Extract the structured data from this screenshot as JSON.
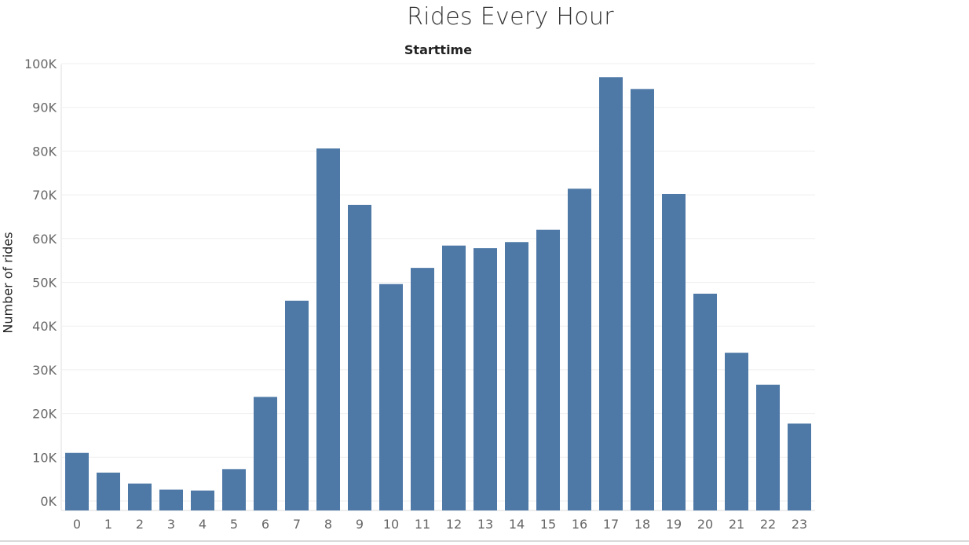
{
  "chart_data": {
    "type": "bar",
    "title": "Rides Every Hour",
    "x_header": "Starttime",
    "ylabel": "Number of rides",
    "categories": [
      "0",
      "1",
      "2",
      "3",
      "4",
      "5",
      "6",
      "7",
      "8",
      "9",
      "10",
      "11",
      "12",
      "13",
      "14",
      "15",
      "16",
      "17",
      "18",
      "19",
      "20",
      "21",
      "22",
      "23"
    ],
    "values": [
      11000,
      6500,
      4000,
      2600,
      2400,
      7300,
      23800,
      45800,
      80600,
      67700,
      49600,
      53300,
      58400,
      57800,
      59200,
      62000,
      71400,
      96900,
      94200,
      70200,
      47400,
      33900,
      26600,
      17700
    ],
    "ylim": [
      0,
      100000
    ],
    "y_ticks": [
      {
        "value": 0,
        "label": "0K"
      },
      {
        "value": 10000,
        "label": "10K"
      },
      {
        "value": 20000,
        "label": "20K"
      },
      {
        "value": 30000,
        "label": "30K"
      },
      {
        "value": 40000,
        "label": "40K"
      },
      {
        "value": 50000,
        "label": "50K"
      },
      {
        "value": 60000,
        "label": "60K"
      },
      {
        "value": 70000,
        "label": "70K"
      },
      {
        "value": 80000,
        "label": "80K"
      },
      {
        "value": 90000,
        "label": "90K"
      },
      {
        "value": 100000,
        "label": "100K"
      }
    ],
    "grid": true,
    "bar_color": "#4e79a7"
  }
}
